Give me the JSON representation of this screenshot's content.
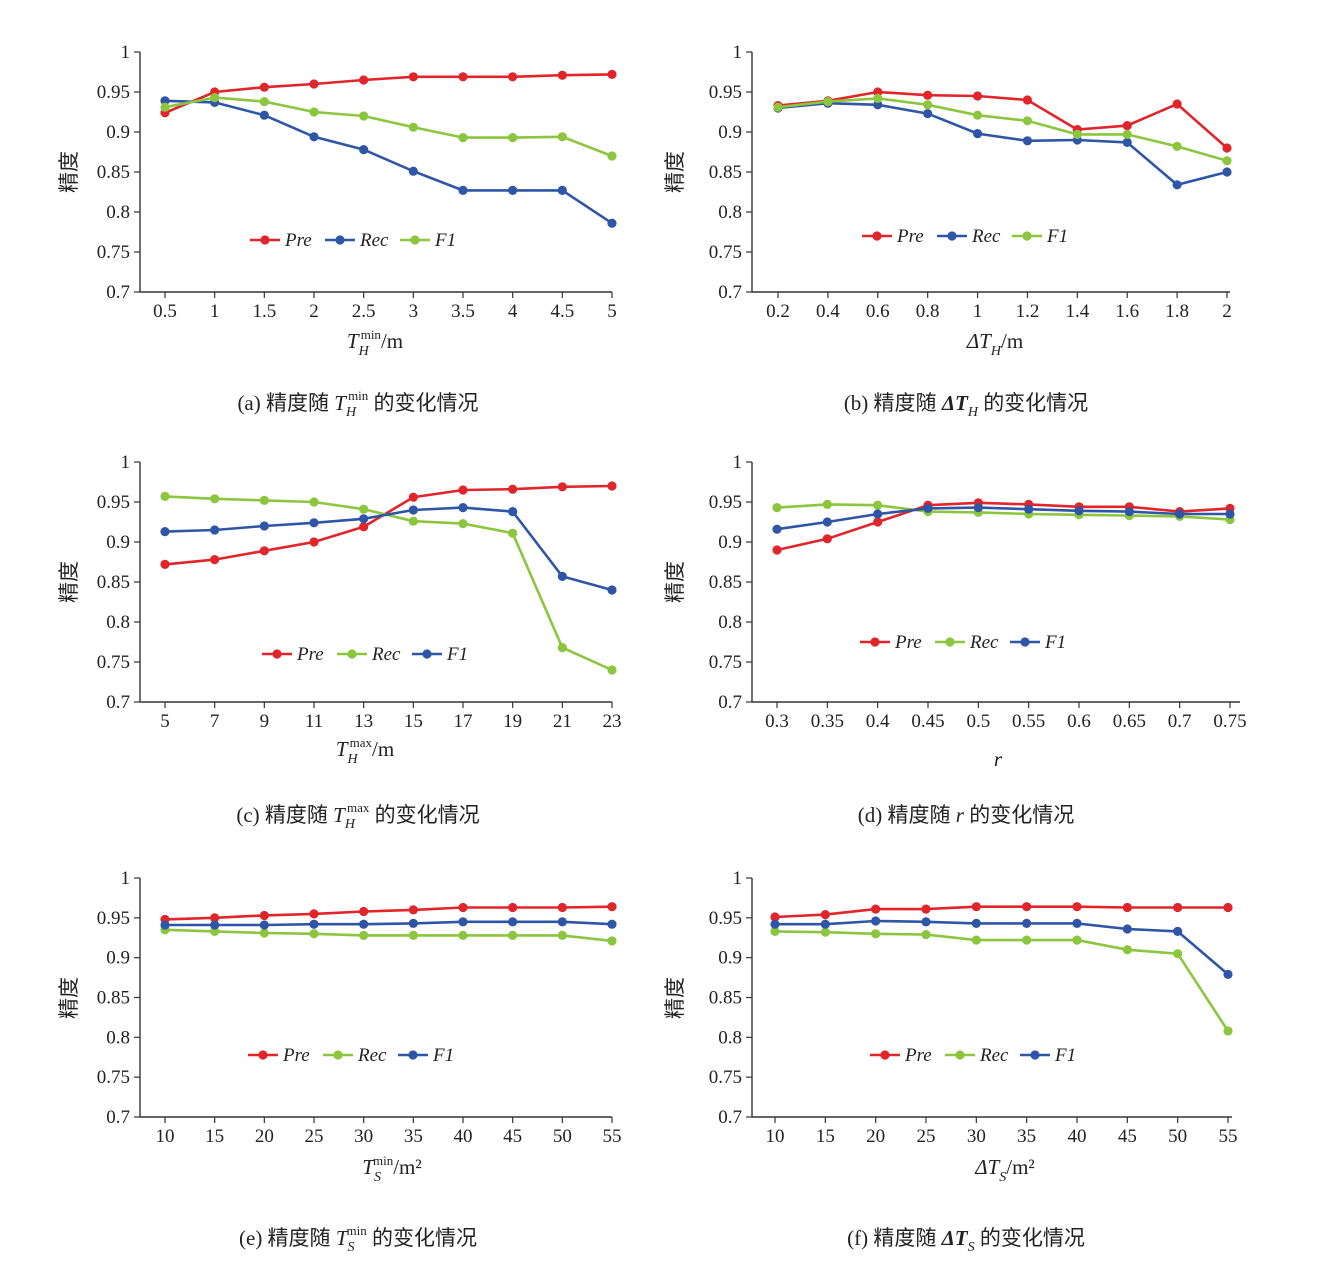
{
  "colors": {
    "red": "#e0252b",
    "blue": "#2f56a6",
    "green": "#8cc63f"
  },
  "chart_data": [
    {
      "type": "line",
      "ylabel": "精度",
      "xlabel": {
        "main": "T",
        "sub": "H",
        "sup": "min",
        "unit": "/m"
      },
      "caption": {
        "prefix": "(a) 精度随 ",
        "main": "T",
        "sub": "H",
        "sup": "min",
        "suffix": " 的变化情况"
      },
      "ylim": [
        0.7,
        1
      ],
      "yticks": [
        "0.7",
        "0.75",
        "0.8",
        "0.85",
        "0.9",
        "0.95",
        "1"
      ],
      "categories": [
        "0.5",
        "1",
        "1.5",
        "2",
        "2.5",
        "3",
        "3.5",
        "4",
        "4.5",
        "5"
      ],
      "series": [
        {
          "name": "Pre",
          "color": "#e0252b",
          "values": [
            0.924,
            0.95,
            0.956,
            0.96,
            0.965,
            0.969,
            0.969,
            0.969,
            0.971,
            0.972
          ]
        },
        {
          "name": "Rec",
          "color": "#2f56a6",
          "values": [
            0.939,
            0.937,
            0.921,
            0.894,
            0.878,
            0.851,
            0.827,
            0.827,
            0.827,
            0.786
          ]
        },
        {
          "name": "F1",
          "color": "#8cc63f",
          "values": [
            0.931,
            0.943,
            0.938,
            0.925,
            0.92,
            0.906,
            0.893,
            0.893,
            0.894,
            0.87
          ]
        }
      ],
      "legend": [
        {
          "name": "Pre",
          "color": "#e0252b"
        },
        {
          "name": "Rec",
          "color": "#2f56a6"
        },
        {
          "name": "F1",
          "color": "#8cc63f"
        }
      ]
    },
    {
      "type": "line",
      "ylabel": "精度",
      "xlabel": {
        "main": "ΔT",
        "sub": "H",
        "sup": "",
        "unit": "/m"
      },
      "caption": {
        "prefix": "(b) 精度随 ",
        "main": "ΔT",
        "sub": "H",
        "sup": "",
        "suffix": " 的变化情况"
      },
      "ylim": [
        0.7,
        1
      ],
      "yticks": [
        "0.7",
        "0.75",
        "0.8",
        "0.85",
        "0.9",
        "0.95",
        "1"
      ],
      "categories": [
        "0.2",
        "0.4",
        "0.6",
        "0.8",
        "1",
        "1.2",
        "1.4",
        "1.6",
        "1.8",
        "2"
      ],
      "series": [
        {
          "name": "Pre",
          "color": "#e0252b",
          "values": [
            0.933,
            0.939,
            0.95,
            0.946,
            0.945,
            0.94,
            0.903,
            0.908,
            0.935,
            0.88
          ]
        },
        {
          "name": "Rec",
          "color": "#2f56a6",
          "values": [
            0.93,
            0.936,
            0.934,
            0.923,
            0.898,
            0.889,
            0.89,
            0.887,
            0.834,
            0.85
          ]
        },
        {
          "name": "F1",
          "color": "#8cc63f",
          "values": [
            0.931,
            0.938,
            0.942,
            0.934,
            0.921,
            0.914,
            0.897,
            0.897,
            0.882,
            0.864
          ]
        }
      ],
      "legend": [
        {
          "name": "Pre",
          "color": "#e0252b"
        },
        {
          "name": "Rec",
          "color": "#2f56a6"
        },
        {
          "name": "F1",
          "color": "#8cc63f"
        }
      ]
    },
    {
      "type": "line",
      "ylabel": "精度",
      "xlabel": {
        "main": "T",
        "sub": "H",
        "sup": "max",
        "unit": "/m"
      },
      "caption": {
        "prefix": "(c) 精度随 ",
        "main": "T",
        "sub": "H",
        "sup": "max",
        "suffix": " 的变化情况"
      },
      "ylim": [
        0.7,
        1
      ],
      "yticks": [
        "0.7",
        "0.75",
        "0.8",
        "0.85",
        "0.9",
        "0.95",
        "1"
      ],
      "categories": [
        "5",
        "7",
        "9",
        "11",
        "13",
        "15",
        "17",
        "19",
        "21",
        "23"
      ],
      "series": [
        {
          "name": "Pre",
          "color": "#e0252b",
          "values": [
            0.872,
            0.878,
            0.889,
            0.9,
            0.919,
            0.956,
            0.965,
            0.966,
            0.969,
            0.97
          ]
        },
        {
          "name": "Rec",
          "color": "#8cc63f",
          "values": [
            0.957,
            0.954,
            0.952,
            0.95,
            0.941,
            0.926,
            0.923,
            0.911,
            0.768,
            0.74
          ]
        },
        {
          "name": "F1",
          "color": "#2f56a6",
          "values": [
            0.913,
            0.915,
            0.92,
            0.924,
            0.929,
            0.94,
            0.943,
            0.938,
            0.857,
            0.84
          ]
        }
      ],
      "legend": [
        {
          "name": "Pre",
          "color": "#e0252b"
        },
        {
          "name": "Rec",
          "color": "#8cc63f"
        },
        {
          "name": "F1",
          "color": "#2f56a6"
        }
      ]
    },
    {
      "type": "line",
      "ylabel": "精度",
      "xlabel": {
        "main": "r",
        "sub": "",
        "sup": "",
        "unit": ""
      },
      "caption": {
        "prefix": "(d) 精度随 ",
        "main": "r",
        "sub": "",
        "sup": "",
        "suffix": " 的变化情况"
      },
      "ylim": [
        0.7,
        1
      ],
      "yticks": [
        "0.7",
        "0.75",
        "0.8",
        "0.85",
        "0.9",
        "0.95",
        "1"
      ],
      "categories": [
        "0.3",
        "0.35",
        "0.4",
        "0.45",
        "0.5",
        "0.55",
        "0.6",
        "0.65",
        "0.7",
        "0.75"
      ],
      "series": [
        {
          "name": "Pre",
          "color": "#e0252b",
          "values": [
            0.89,
            0.904,
            0.925,
            0.946,
            0.949,
            0.947,
            0.944,
            0.944,
            0.938,
            0.942
          ]
        },
        {
          "name": "Rec",
          "color": "#8cc63f",
          "values": [
            0.943,
            0.947,
            0.946,
            0.938,
            0.937,
            0.935,
            0.934,
            0.933,
            0.932,
            0.928
          ]
        },
        {
          "name": "F1",
          "color": "#2f56a6",
          "values": [
            0.916,
            0.925,
            0.935,
            0.942,
            0.943,
            0.941,
            0.939,
            0.938,
            0.935,
            0.935
          ]
        }
      ],
      "legend": [
        {
          "name": "Pre",
          "color": "#e0252b"
        },
        {
          "name": "Rec",
          "color": "#8cc63f"
        },
        {
          "name": "F1",
          "color": "#2f56a6"
        }
      ]
    },
    {
      "type": "line",
      "ylabel": "精度",
      "xlabel": {
        "main": "T",
        "sub": "S",
        "sup": "min",
        "unit": "/m²"
      },
      "caption": {
        "prefix": "(e) 精度随 ",
        "main": "T",
        "sub": "S",
        "sup": "min",
        "suffix": " 的变化情况"
      },
      "ylim": [
        0.7,
        1
      ],
      "yticks": [
        "0.7",
        "0.75",
        "0.8",
        "0.85",
        "0.9",
        "0.95",
        "1"
      ],
      "categories": [
        "10",
        "15",
        "20",
        "25",
        "30",
        "35",
        "40",
        "45",
        "50",
        "55"
      ],
      "series": [
        {
          "name": "Pre",
          "color": "#e0252b",
          "values": [
            0.948,
            0.95,
            0.953,
            0.955,
            0.958,
            0.96,
            0.963,
            0.963,
            0.963,
            0.964
          ]
        },
        {
          "name": "Rec",
          "color": "#8cc63f",
          "values": [
            0.935,
            0.933,
            0.931,
            0.93,
            0.928,
            0.928,
            0.928,
            0.928,
            0.928,
            0.921
          ]
        },
        {
          "name": "F1",
          "color": "#2f56a6",
          "values": [
            0.941,
            0.941,
            0.941,
            0.942,
            0.942,
            0.943,
            0.945,
            0.945,
            0.945,
            0.942
          ]
        }
      ],
      "legend": [
        {
          "name": "Pre",
          "color": "#e0252b"
        },
        {
          "name": "Rec",
          "color": "#8cc63f"
        },
        {
          "name": "F1",
          "color": "#2f56a6"
        }
      ]
    },
    {
      "type": "line",
      "ylabel": "精度",
      "xlabel": {
        "main": "ΔT",
        "sub": "S",
        "sup": "",
        "unit": "/m²"
      },
      "caption": {
        "prefix": "(f) 精度随 ",
        "main": "ΔT",
        "sub": "S",
        "sup": "",
        "suffix": " 的变化情况"
      },
      "ylim": [
        0.7,
        1
      ],
      "yticks": [
        "0.7",
        "0.75",
        "0.8",
        "0.85",
        "0.9",
        "0.95",
        "1"
      ],
      "categories": [
        "10",
        "15",
        "20",
        "25",
        "30",
        "35",
        "40",
        "45",
        "50",
        "55"
      ],
      "series": [
        {
          "name": "Pre",
          "color": "#e0252b",
          "values": [
            0.951,
            0.954,
            0.961,
            0.961,
            0.964,
            0.964,
            0.964,
            0.963,
            0.963,
            0.963
          ]
        },
        {
          "name": "Rec",
          "color": "#8cc63f",
          "values": [
            0.933,
            0.932,
            0.93,
            0.929,
            0.922,
            0.922,
            0.922,
            0.91,
            0.905,
            0.808
          ]
        },
        {
          "name": "F1",
          "color": "#2f56a6",
          "values": [
            0.942,
            0.942,
            0.946,
            0.945,
            0.943,
            0.943,
            0.943,
            0.936,
            0.933,
            0.879
          ]
        }
      ],
      "legend": [
        {
          "name": "Pre",
          "color": "#e0252b"
        },
        {
          "name": "Rec",
          "color": "#8cc63f"
        },
        {
          "name": "F1",
          "color": "#2f56a6"
        }
      ]
    }
  ]
}
